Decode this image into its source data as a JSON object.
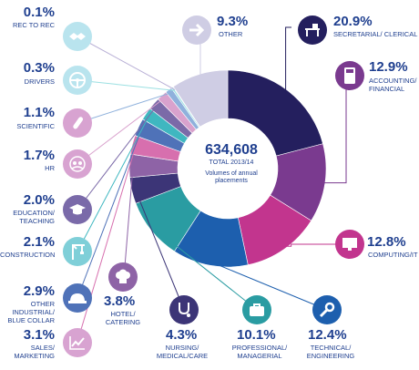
{
  "center": {
    "total": "634,608",
    "sub1": "TOTAL 2013/14",
    "sub2": "Volumes of annual placements"
  },
  "chart_data": {
    "type": "pie",
    "title": "",
    "series": [
      {
        "label": "SECRETARIAL/ CLERICAL",
        "value": 20.9,
        "pct": "20.9%",
        "color": "#241f5e"
      },
      {
        "label": "ACCOUNTING/ FINANCIAL",
        "value": 12.9,
        "pct": "12.9%",
        "color": "#7a3a8f"
      },
      {
        "label": "COMPUTING/IT",
        "value": 12.8,
        "pct": "12.8%",
        "color": "#c2358e"
      },
      {
        "label": "TECHNICAL/ ENGINEERING",
        "value": 12.4,
        "pct": "12.4%",
        "color": "#1d5fae"
      },
      {
        "label": "PROFESSIONAL/ MANAGERIAL",
        "value": 10.1,
        "pct": "10.1%",
        "color": "#2a9ca2"
      },
      {
        "label": "NURSING/ MEDICAL/CARE",
        "value": 4.3,
        "pct": "4.3%",
        "color": "#3c3577"
      },
      {
        "label": "HOTEL/ CATERING",
        "value": 3.8,
        "pct": "3.8%",
        "color": "#8e63a6"
      },
      {
        "label": "SALES/ MARKETING",
        "value": 3.1,
        "pct": "3.1%",
        "color": "#d76fae"
      },
      {
        "label": "OTHER INDUSTRIAL/ BLUE COLLAR",
        "value": 2.9,
        "pct": "2.9%",
        "color": "#4f72b8"
      },
      {
        "label": "CONSTRUCTION",
        "value": 2.1,
        "pct": "2.1%",
        "color": "#3fb7c0"
      },
      {
        "label": "EDUCATION/ TEACHING",
        "value": 2.0,
        "pct": "2.0%",
        "color": "#7b6aa8"
      },
      {
        "label": "HR",
        "value": 1.7,
        "pct": "1.7%",
        "color": "#d9a2cd"
      },
      {
        "label": "SCIENTIFIC",
        "value": 1.1,
        "pct": "1.1%",
        "color": "#8fb1dc"
      },
      {
        "label": "DRIVERS",
        "value": 0.3,
        "pct": "0.3%",
        "color": "#9be0e2"
      },
      {
        "label": "REC TO REC",
        "value": 0.1,
        "pct": "0.1%",
        "color": "#b9b0d6"
      },
      {
        "label": "OTHER",
        "value": 9.3,
        "pct": "9.3%",
        "color": "#cfcde4"
      }
    ]
  },
  "icons": {
    "secretarial": "desk-icon",
    "accounting": "calculator-icon",
    "computing": "monitor-icon",
    "technical": "wrench-icon",
    "professional": "briefcase-icon",
    "nursing": "stethoscope-icon",
    "hotel": "chef-hat-icon",
    "sales": "line-chart-icon",
    "industrial": "hard-hat-icon",
    "construction": "crane-icon",
    "education": "mortarboard-icon",
    "hr": "people-icon",
    "scientific": "test-tube-icon",
    "drivers": "steering-wheel-icon",
    "rec": "handshake-icon",
    "other": "arrow-right-icon"
  }
}
